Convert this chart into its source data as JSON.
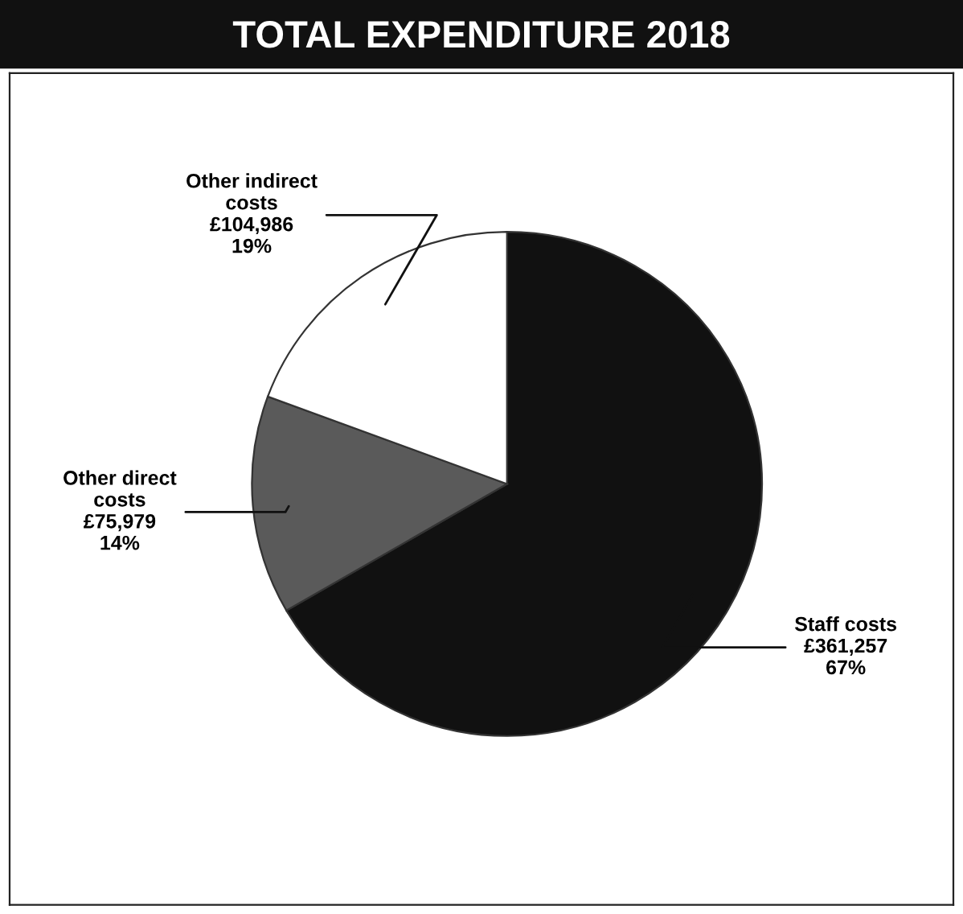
{
  "chart_data": {
    "type": "pie",
    "title": "TOTAL EXPENDITURE 2018",
    "categories": [
      "Staff costs",
      "Other direct\ncosts",
      "Other indirect\ncosts"
    ],
    "values": [
      361257,
      75979,
      104986
    ],
    "value_labels": [
      "£361,257\n67%",
      "£75,979\n14%",
      "£104,986\n19%"
    ],
    "colors": [
      "#111111",
      "#5a5a5a",
      "#ffffff"
    ],
    "legend": false
  }
}
